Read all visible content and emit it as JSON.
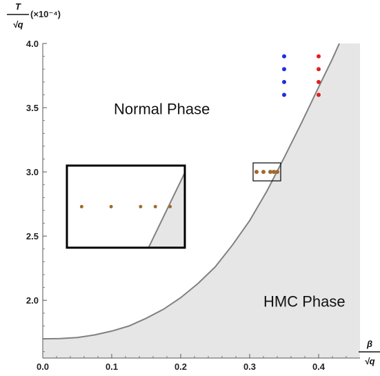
{
  "chart_data": {
    "type": "scatter",
    "x_axis": {
      "label_numerator": "β",
      "label_denominator": "√q",
      "range": [
        0.0,
        0.46
      ],
      "ticks": [
        0.0,
        0.1,
        0.2,
        0.3,
        0.4
      ],
      "tick_labels": [
        "0.0",
        "0.1",
        "0.2",
        "0.3",
        "0.4"
      ]
    },
    "y_axis": {
      "label_numerator": "T",
      "label_denominator": "√q",
      "label_suffix": "(×10⁻⁴)",
      "range": [
        1.55,
        4.0
      ],
      "ticks": [
        2.0,
        2.5,
        3.0,
        3.5,
        4.0
      ],
      "tick_labels": [
        "2.0",
        "2.5",
        "3.0",
        "3.5",
        "4.0"
      ]
    },
    "regions": [
      {
        "name": "Normal Phase",
        "label": "Normal Phase"
      },
      {
        "name": "HMC Phase",
        "label": "HMC Phase",
        "fill": "#e6e6e6"
      }
    ],
    "boundary": {
      "color": "#808080",
      "points": [
        [
          0.0,
          1.7
        ],
        [
          0.025,
          1.702
        ],
        [
          0.05,
          1.71
        ],
        [
          0.075,
          1.73
        ],
        [
          0.1,
          1.76
        ],
        [
          0.125,
          1.8
        ],
        [
          0.15,
          1.86
        ],
        [
          0.175,
          1.93
        ],
        [
          0.2,
          2.02
        ],
        [
          0.225,
          2.13
        ],
        [
          0.25,
          2.26
        ],
        [
          0.275,
          2.43
        ],
        [
          0.3,
          2.62
        ],
        [
          0.325,
          2.85
        ],
        [
          0.35,
          3.11
        ],
        [
          0.375,
          3.38
        ],
        [
          0.4,
          3.66
        ],
        [
          0.42,
          3.88
        ],
        [
          0.43,
          4.0
        ]
      ]
    },
    "series": [
      {
        "color": "#1f2fe0",
        "x": [
          0.35,
          0.35,
          0.35,
          0.35
        ],
        "y": [
          3.9,
          3.8,
          3.7,
          3.6
        ]
      },
      {
        "color": "#e01f1f",
        "x": [
          0.4,
          0.4,
          0.4,
          0.4
        ],
        "y": [
          3.9,
          3.8,
          3.7,
          3.6
        ]
      },
      {
        "color": "#a0692e",
        "x": [
          0.31,
          0.32,
          0.33,
          0.335,
          0.34
        ],
        "y": [
          3.0,
          3.0,
          3.0,
          3.0,
          3.0
        ]
      }
    ],
    "zoom_box": {
      "x_range": [
        0.305,
        0.345
      ],
      "y_range": [
        2.93,
        3.07
      ]
    },
    "inset": {
      "x_range": [
        0.305,
        0.345
      ],
      "y_range": [
        2.93,
        3.07
      ],
      "points": {
        "color": "#a0692e",
        "x": [
          0.31,
          0.32,
          0.33,
          0.335,
          0.34
        ],
        "y": [
          3.0,
          3.0,
          3.0,
          3.0,
          3.0
        ]
      }
    }
  }
}
